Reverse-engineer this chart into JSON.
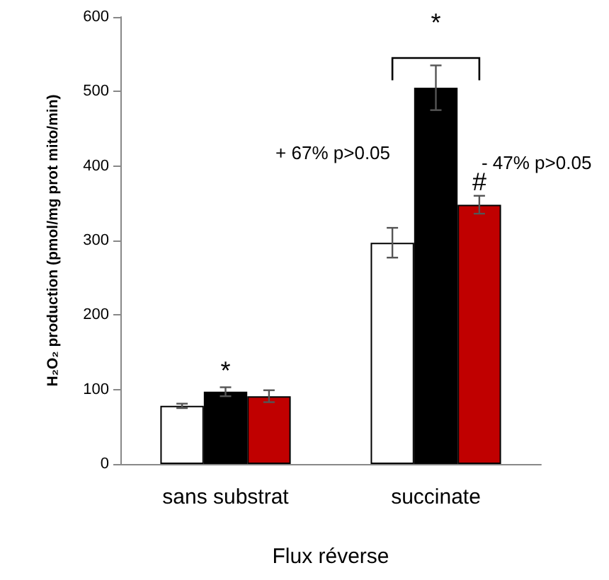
{
  "chart_data": {
    "type": "bar",
    "categories": [
      "sans substrat",
      "succinate"
    ],
    "xlabel": "Flux réverse",
    "ylabel": "H₂O₂ production (pmol/mg prot mito/min)",
    "series": [
      {
        "color": "#ffffff",
        "values": [
          78,
          297
        ],
        "errors": [
          3,
          20
        ]
      },
      {
        "color": "#000000",
        "values": [
          97,
          505
        ],
        "errors": [
          6,
          30
        ]
      },
      {
        "color": "#c00000",
        "values": [
          91,
          348
        ],
        "errors": [
          8,
          12
        ]
      }
    ],
    "ylim": [
      0,
      600
    ],
    "yticks": [
      0,
      100,
      200,
      300,
      400,
      500,
      600
    ],
    "annotations": [
      "*",
      "*",
      "#",
      "+ 67% p>0.05",
      "- 47% p>0.05"
    ],
    "grid": false
  }
}
